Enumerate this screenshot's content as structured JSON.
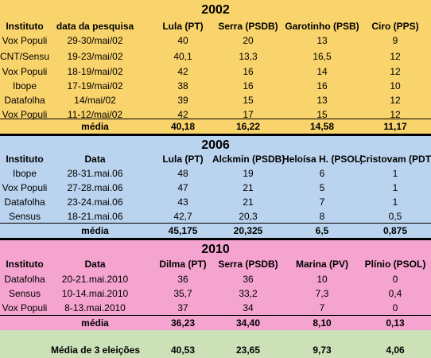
{
  "sections": [
    {
      "year": "2002",
      "color": "#F9D36B",
      "headers": [
        "Instituto",
        "data da pesquisa",
        "Lula (PT)",
        "Serra (PSDB)",
        "Garotinho (PSB)",
        "Ciro (PPS)"
      ],
      "rows": [
        [
          "Vox Populi",
          "29-30/mai/02",
          "40",
          "20",
          "13",
          "9"
        ],
        [
          "CNT/Sensus",
          "19-23/mai/02",
          "40,1",
          "13,3",
          "16,5",
          "12"
        ],
        [
          "Vox Populi",
          "18-19/mai/02",
          "42",
          "16",
          "14",
          "12"
        ],
        [
          "Ibope",
          "17-19/mai/02",
          "38",
          "16",
          "16",
          "10"
        ],
        [
          "Datafolha",
          "14/mai/02",
          "39",
          "15",
          "13",
          "12"
        ],
        [
          "Vox Populi",
          "11-12/mai/02",
          "42",
          "17",
          "15",
          "12"
        ]
      ],
      "average": [
        "",
        "média",
        "40,18",
        "16,22",
        "14,58",
        "11,17"
      ]
    },
    {
      "year": "2006",
      "color": "#BAD3EE",
      "headers": [
        "Instituto",
        "Data",
        "Lula (PT)",
        "Alckmin (PSDB)",
        "Heloísa H. (PSOL)",
        "Cristovam (PDT)"
      ],
      "rows": [
        [
          "Ibope",
          "28-31.mai.06",
          "48",
          "19",
          "6",
          "1"
        ],
        [
          "Vox Populi",
          "27-28.mai.06",
          "47",
          "21",
          "5",
          "1"
        ],
        [
          "Datafolha",
          "23-24.mai.06",
          "43",
          "21",
          "7",
          "1"
        ],
        [
          "Sensus",
          "18-21.mai.06",
          "42,7",
          "20,3",
          "8",
          "0,5"
        ]
      ],
      "average": [
        "",
        "média",
        "45,175",
        "20,325",
        "6,5",
        "0,875"
      ]
    },
    {
      "year": "2010",
      "color": "#F5A3CF",
      "headers": [
        "Instituto",
        "Data",
        "Dilma (PT)",
        "Serra (PSDB)",
        "Marina (PV)",
        "Plínio (PSOL)"
      ],
      "rows": [
        [
          "Datafolha",
          "20-21.mai.2010",
          "36",
          "36",
          "10",
          "0"
        ],
        [
          "Sensus",
          "10-14.mai.2010",
          "35,7",
          "33,2",
          "7,3",
          "0,4"
        ],
        [
          "Vox Populi",
          "8-13.mai.2010",
          "37",
          "34",
          "7",
          "0"
        ]
      ],
      "average": [
        "",
        "média",
        "36,23",
        "34,40",
        "8,10",
        "0,13"
      ]
    }
  ],
  "summary": {
    "color": "#CCE1B8",
    "label": "Média de 3 eleições",
    "values": [
      "40,53",
      "23,65",
      "9,73",
      "4,06"
    ]
  }
}
